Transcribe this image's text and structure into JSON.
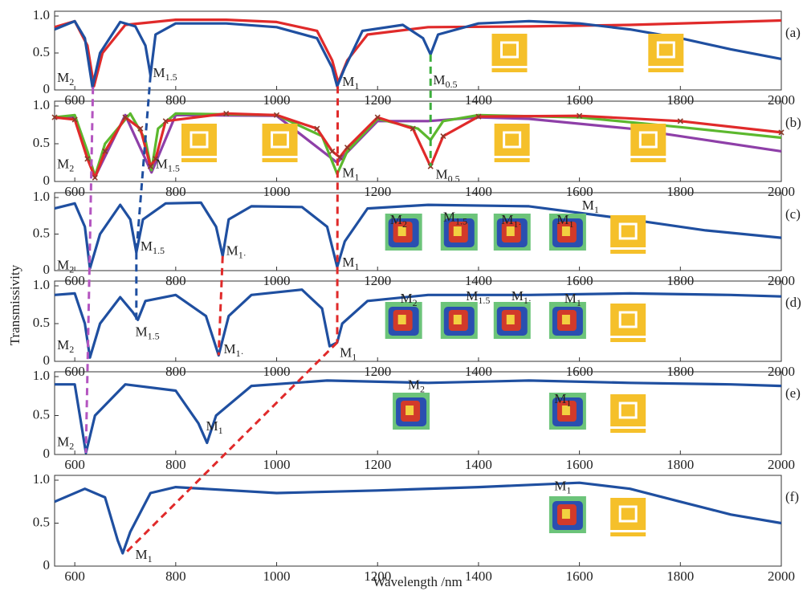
{
  "shared": {
    "y_label": "Transmissivity",
    "x_label": "Wavelength /nm"
  },
  "chart_data": [
    {
      "type": "line",
      "panel_label": "(a)",
      "xlim": [
        560,
        2000
      ],
      "ylim": [
        0,
        1
      ],
      "xticks": [
        600,
        800,
        1000,
        1200,
        1400,
        1600,
        1800,
        2000
      ],
      "yticks": [
        0,
        0.5,
        {
          "value": 1,
          "label": "1.0"
        }
      ],
      "series": [
        {
          "color": "#e02a2a",
          "x": [
            560,
            600,
            625,
            638,
            655,
            700,
            800,
            900,
            1000,
            1080,
            1110,
            1122,
            1140,
            1180,
            1300,
            1500,
            1700,
            1900,
            2000
          ],
          "values": [
            0.85,
            0.93,
            0.6,
            0.05,
            0.5,
            0.88,
            0.95,
            0.95,
            0.92,
            0.8,
            0.4,
            0.1,
            0.4,
            0.75,
            0.85,
            0.86,
            0.88,
            0.92,
            0.94
          ]
        },
        {
          "color": "#1f4fa0",
          "x": [
            560,
            600,
            620,
            635,
            650,
            690,
            720,
            740,
            750,
            760,
            800,
            900,
            1000,
            1080,
            1110,
            1120,
            1135,
            1170,
            1250,
            1290,
            1305,
            1320,
            1400,
            1500,
            1600,
            1700,
            1800,
            1900,
            2000
          ],
          "values": [
            0.82,
            0.93,
            0.7,
            0.04,
            0.5,
            0.92,
            0.86,
            0.6,
            0.2,
            0.75,
            0.9,
            0.9,
            0.85,
            0.7,
            0.3,
            0.05,
            0.3,
            0.8,
            0.88,
            0.7,
            0.48,
            0.75,
            0.9,
            0.93,
            0.9,
            0.82,
            0.7,
            0.55,
            0.42
          ]
        }
      ],
      "annotations": [
        {
          "text": "M",
          "sub": "2"
        },
        {
          "text": "M",
          "sub": "1.5"
        },
        {
          "text": "M",
          "sub": "1"
        },
        {
          "text": "M",
          "sub": "0.5"
        }
      ]
    },
    {
      "type": "line",
      "panel_label": "(b)",
      "xlim": [
        560,
        2000
      ],
      "ylim": [
        0,
        1
      ],
      "xticks": [
        600,
        800,
        1000,
        1200,
        1400,
        1600,
        1800,
        2000
      ],
      "yticks": [
        0,
        0.5,
        {
          "value": 1,
          "label": "1.0"
        }
      ],
      "series": [
        {
          "color": "#8e3fa8",
          "x": [
            560,
            600,
            640,
            700,
            752,
            800,
            1000,
            1120,
            1200,
            1300,
            1400,
            1500,
            1700,
            1850,
            2000
          ],
          "values": [
            0.84,
            0.86,
            0.06,
            0.88,
            0.12,
            0.88,
            0.87,
            0.25,
            0.8,
            0.8,
            0.85,
            0.83,
            0.7,
            0.55,
            0.4
          ]
        },
        {
          "color": "#5cb82e",
          "x": [
            560,
            600,
            625,
            640,
            660,
            710,
            740,
            752,
            765,
            800,
            1000,
            1090,
            1120,
            1140,
            1200,
            1280,
            1305,
            1330,
            1400,
            1600,
            1800,
            2000
          ],
          "values": [
            0.85,
            0.88,
            0.4,
            0.07,
            0.5,
            0.9,
            0.55,
            0.15,
            0.7,
            0.9,
            0.88,
            0.6,
            0.1,
            0.4,
            0.83,
            0.7,
            0.55,
            0.8,
            0.88,
            0.85,
            0.72,
            0.58
          ]
        },
        {
          "color": "#e02a2a",
          "markers": true,
          "x": [
            560,
            600,
            625,
            640,
            660,
            700,
            730,
            750,
            760,
            780,
            900,
            1000,
            1080,
            1110,
            1125,
            1140,
            1200,
            1270,
            1305,
            1330,
            1400,
            1600,
            1800,
            2000
          ],
          "values": [
            0.85,
            0.82,
            0.3,
            0.05,
            0.4,
            0.85,
            0.7,
            0.2,
            0.3,
            0.8,
            0.9,
            0.88,
            0.7,
            0.4,
            0.32,
            0.45,
            0.85,
            0.7,
            0.2,
            0.6,
            0.86,
            0.87,
            0.8,
            0.65
          ]
        }
      ],
      "annotations": [
        {
          "text": "M",
          "sub": "2"
        },
        {
          "text": "M",
          "sub": "1.5"
        },
        {
          "text": "M",
          "sub": "1"
        },
        {
          "text": "M",
          "sub": "0.5"
        }
      ]
    },
    {
      "type": "line",
      "panel_label": "(c)",
      "xlim": [
        560,
        2000
      ],
      "ylim": [
        0,
        1
      ],
      "xticks": [
        600,
        800,
        1000,
        1200,
        1400,
        1600,
        1800,
        2000
      ],
      "yticks": [
        0,
        0.5,
        {
          "value": 1,
          "label": "1.0"
        }
      ],
      "series": [
        {
          "color": "#1f4fa0",
          "x": [
            560,
            600,
            620,
            630,
            650,
            690,
            710,
            722,
            735,
            780,
            850,
            880,
            893,
            905,
            950,
            1050,
            1100,
            1120,
            1135,
            1180,
            1300,
            1500,
            1700,
            1850,
            2000
          ],
          "values": [
            0.85,
            0.92,
            0.6,
            0.03,
            0.5,
            0.9,
            0.7,
            0.25,
            0.7,
            0.92,
            0.93,
            0.6,
            0.2,
            0.7,
            0.88,
            0.87,
            0.6,
            0.05,
            0.4,
            0.85,
            0.9,
            0.88,
            0.7,
            0.55,
            0.45
          ]
        }
      ],
      "annotations": [
        {
          "text": "M",
          "sub": "2"
        },
        {
          "text": "M",
          "sub": "1.5"
        },
        {
          "text": "M",
          "sub": "1·"
        },
        {
          "text": "M",
          "sub": "1"
        },
        {
          "text": "M",
          "sub": "2"
        },
        {
          "text": "M",
          "sub": "1.5"
        },
        {
          "text": "M",
          "sub": "1·"
        },
        {
          "text": "M",
          "sub": "1"
        },
        {
          "text": "M",
          "sub": "1"
        }
      ]
    },
    {
      "type": "line",
      "panel_label": "(d)",
      "xlim": [
        560,
        2000
      ],
      "ylim": [
        0,
        1
      ],
      "xticks": [
        600,
        800,
        1000,
        1200,
        1400,
        1600,
        1800,
        2000
      ],
      "yticks": [
        0,
        0.5,
        {
          "value": 1,
          "label": "1.0"
        }
      ],
      "series": [
        {
          "color": "#1f4fa0",
          "x": [
            560,
            600,
            620,
            630,
            650,
            690,
            715,
            725,
            740,
            800,
            860,
            885,
            905,
            950,
            1050,
            1090,
            1105,
            1120,
            1130,
            1180,
            1300,
            1500,
            1700,
            1900,
            2000
          ],
          "values": [
            0.88,
            0.9,
            0.5,
            0.05,
            0.5,
            0.85,
            0.65,
            0.55,
            0.8,
            0.88,
            0.6,
            0.08,
            0.6,
            0.88,
            0.95,
            0.7,
            0.2,
            0.25,
            0.5,
            0.8,
            0.88,
            0.88,
            0.9,
            0.88,
            0.86
          ]
        }
      ],
      "annotations": [
        {
          "text": "M",
          "sub": "2"
        },
        {
          "text": "M",
          "sub": "1.5"
        },
        {
          "text": "M",
          "sub": "1·"
        },
        {
          "text": "M",
          "sub": "1"
        },
        {
          "text": "M",
          "sub": "2"
        },
        {
          "text": "M",
          "sub": "1.5"
        },
        {
          "text": "M",
          "sub": "1·"
        },
        {
          "text": "M",
          "sub": "1"
        }
      ]
    },
    {
      "type": "line",
      "panel_label": "(e)",
      "xlim": [
        560,
        2000
      ],
      "ylim": [
        0,
        1
      ],
      "xticks": [
        600,
        800,
        1000,
        1200,
        1400,
        1600,
        1800,
        2000
      ],
      "yticks": [
        0,
        0.5,
        {
          "value": 1,
          "label": "1.0"
        }
      ],
      "series": [
        {
          "color": "#1f4fa0",
          "x": [
            560,
            600,
            615,
            622,
            640,
            700,
            800,
            845,
            862,
            880,
            950,
            1100,
            1300,
            1500,
            1700,
            1900,
            2000
          ],
          "values": [
            0.9,
            0.9,
            0.3,
            0.02,
            0.5,
            0.9,
            0.82,
            0.4,
            0.15,
            0.5,
            0.88,
            0.95,
            0.92,
            0.95,
            0.92,
            0.9,
            0.88
          ]
        }
      ],
      "annotations": [
        {
          "text": "M",
          "sub": "2"
        },
        {
          "text": "M",
          "sub": "1"
        },
        {
          "text": "M",
          "sub": "2"
        },
        {
          "text": "M",
          "sub": "1"
        }
      ]
    },
    {
      "type": "line",
      "panel_label": "(f)",
      "xlim": [
        560,
        2000
      ],
      "ylim": [
        0,
        1
      ],
      "xticks": [
        600,
        800,
        1000,
        1200,
        1400,
        1600,
        1800,
        2000
      ],
      "yticks": [
        0,
        0.5,
        {
          "value": 1,
          "label": "1.0"
        }
      ],
      "series": [
        {
          "color": "#1f4fa0",
          "x": [
            560,
            620,
            660,
            685,
            695,
            710,
            750,
            800,
            1000,
            1200,
            1400,
            1600,
            1700,
            1800,
            1900,
            2000
          ],
          "values": [
            0.75,
            0.9,
            0.8,
            0.3,
            0.15,
            0.4,
            0.85,
            0.92,
            0.85,
            0.88,
            0.92,
            0.97,
            0.9,
            0.75,
            0.6,
            0.5
          ]
        }
      ],
      "annotations": [
        {
          "text": "M",
          "sub": "1"
        },
        {
          "text": "M",
          "sub": "1"
        }
      ]
    }
  ]
}
